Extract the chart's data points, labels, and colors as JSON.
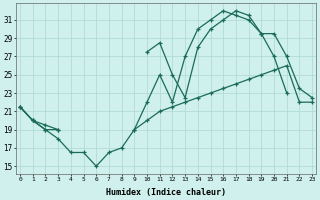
{
  "xlabel": "Humidex (Indice chaleur)",
  "x_ticks": [
    0,
    1,
    2,
    3,
    4,
    5,
    6,
    7,
    8,
    9,
    10,
    11,
    12,
    13,
    14,
    15,
    16,
    17,
    18,
    19,
    20,
    21,
    22,
    23
  ],
  "y_ticks": [
    15,
    17,
    19,
    21,
    23,
    25,
    27,
    29,
    31
  ],
  "xlim": [
    -0.3,
    23.3
  ],
  "ylim": [
    14.2,
    32.8
  ],
  "bg_color": "#cff0ec",
  "grid_color": "#aad8d0",
  "line_color": "#1a6b5a",
  "line_width": 0.9,
  "marker_size": 3.5,
  "line1_x": [
    0,
    1,
    2,
    3,
    4,
    5,
    6,
    7,
    8,
    9,
    10,
    11,
    12,
    13,
    14,
    15,
    16,
    17,
    18,
    19,
    20,
    21
  ],
  "line1_y": [
    21.5,
    20.0,
    19.0,
    18.0,
    16.5,
    16.5,
    15.0,
    16.5,
    17.0,
    19.0,
    22.0,
    25.0,
    22.0,
    27.0,
    30.0,
    31.0,
    32.0,
    31.5,
    31.0,
    29.5,
    27.0,
    23.0
  ],
  "line2_x": [
    0,
    1,
    2,
    3,
    9,
    10,
    11,
    12,
    13,
    14,
    15,
    16,
    17,
    18,
    19,
    20,
    21,
    22,
    23
  ],
  "line2_y": [
    21.5,
    20.0,
    19.0,
    19.0,
    19.0,
    20.0,
    21.0,
    21.5,
    22.0,
    22.5,
    23.0,
    23.5,
    24.0,
    24.5,
    25.0,
    25.5,
    26.0,
    22.0,
    22.0
  ],
  "line3_x": [
    0,
    1,
    2,
    3,
    10,
    11,
    12,
    13,
    14,
    15,
    16,
    17,
    18,
    19,
    20,
    21,
    22,
    23
  ],
  "line3_y": [
    21.5,
    20.0,
    19.5,
    19.0,
    27.5,
    28.5,
    25.0,
    22.5,
    28.0,
    30.0,
    31.0,
    32.0,
    31.5,
    29.5,
    29.5,
    27.0,
    23.5,
    22.5
  ]
}
